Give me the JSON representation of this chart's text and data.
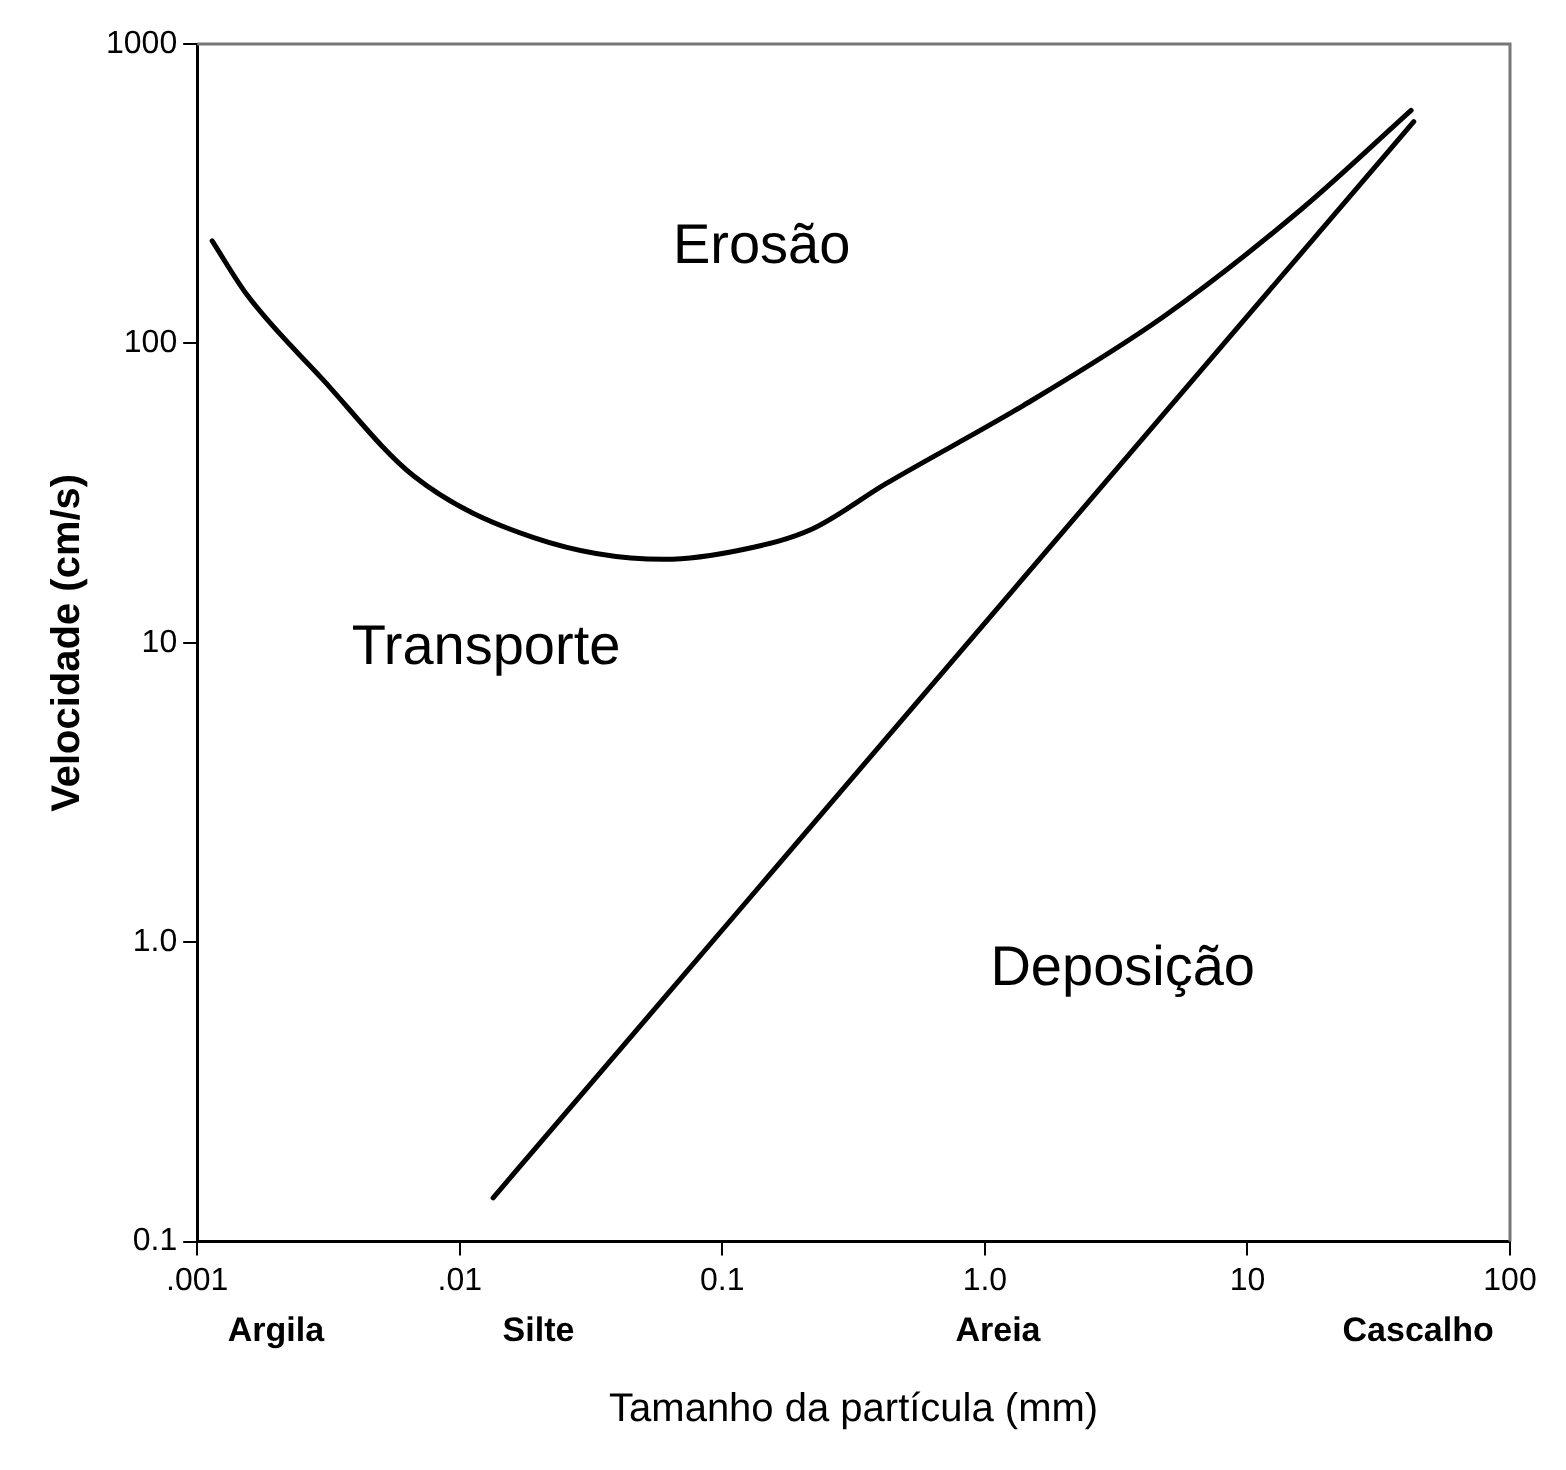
{
  "chart_data": {
    "type": "line",
    "xlabel": "Tamanho da partícula (mm)",
    "ylabel": "Velocidade (cm/s)",
    "log": "xy",
    "grid": false,
    "legend": false,
    "marker": "none",
    "line_style": "solid",
    "xlim": [
      0.001,
      100
    ],
    "xticks": [
      {
        "value": 0.001,
        "label": ".001"
      },
      {
        "value": 0.01,
        "label": ".01"
      },
      0.1,
      {
        "value": 1,
        "label": "1.0"
      },
      10,
      100
    ],
    "ylim": [
      0.1,
      1000
    ],
    "yticks": [
      0.1,
      {
        "value": 1,
        "label": "1.0"
      },
      10,
      100,
      1000
    ],
    "series": [
      {
        "color": "#000000",
        "x": [
          0.00114,
          0.00155,
          0.003,
          0.0067,
          0.019,
          0.06,
          0.12,
          0.22,
          0.42,
          1.4,
          4.8,
          16,
          42
        ],
        "values": [
          220,
          145,
          76,
          36,
          22.5,
          19,
          20.5,
          24,
          34,
          62,
          123,
          280,
          600
        ]
      },
      {
        "color": "#000000",
        "x": [
          0.0134,
          43
        ],
        "values": [
          0.14,
          550
        ]
      }
    ],
    "annotations": [
      "Erosão",
      "Transporte",
      "Deposição",
      "Argila",
      "Silte",
      "Areia",
      "Cascalho"
    ]
  }
}
